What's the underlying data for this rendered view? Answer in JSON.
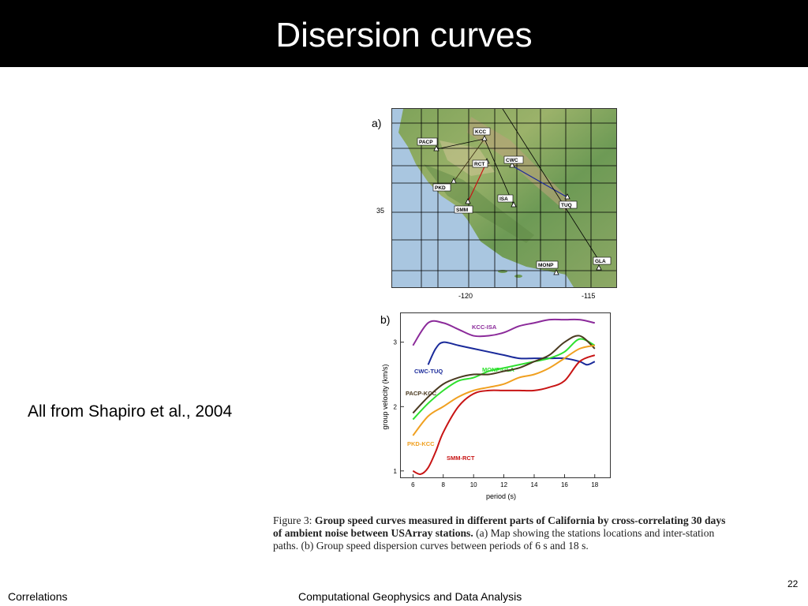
{
  "slide": {
    "title": "Disersion curves",
    "side_text": "All from Shapiro et al., 2004",
    "page_number": "22",
    "footer_left": "Correlations",
    "footer_center": "Computational Geophysics and Data Analysis"
  },
  "figure": {
    "panel_a_label": "a)",
    "panel_b_label": "b)",
    "map": {
      "lat_tick": "35",
      "lon_ticks": [
        "-120",
        "-115"
      ],
      "stations": [
        "KCC",
        "PACP",
        "RCT",
        "CWC",
        "PKD",
        "ISA",
        "SMM",
        "TUQ",
        "MONP",
        "GLA"
      ]
    },
    "caption": {
      "label": "Figure 3:",
      "bold_text": "Group speed curves measured in different parts of California by cross-correlating 30 days of ambient noise between USArray stations.",
      "rest": "(a) Map showing the stations locations and inter-station paths. (b) Group speed dispersion curves between periods of 6 s and 18 s."
    }
  },
  "chart_data": {
    "type": "line",
    "xlabel": "period (s)",
    "ylabel": "group velocity (km/s)",
    "x_ticks": [
      6,
      8,
      10,
      12,
      14,
      16,
      18
    ],
    "y_ticks": [
      1,
      2,
      3
    ],
    "xlim": [
      5.2,
      19.0
    ],
    "ylim": [
      0.9,
      3.45
    ],
    "grid": false,
    "series": [
      {
        "name": "KCC-ISA",
        "color": "#8b2a9a",
        "x": [
          6,
          7,
          8,
          9,
          10,
          11,
          12,
          13,
          14,
          15,
          16,
          17,
          18
        ],
        "y": [
          2.95,
          3.3,
          3.3,
          3.2,
          3.1,
          3.1,
          3.15,
          3.25,
          3.3,
          3.35,
          3.35,
          3.35,
          3.3
        ]
      },
      {
        "name": "CWC-TUQ",
        "color": "#1a2a9a",
        "x": [
          7,
          7.5,
          8,
          9,
          10,
          11,
          12,
          13,
          14,
          15,
          16,
          17,
          17.5,
          18
        ],
        "y": [
          2.65,
          2.9,
          3.0,
          2.95,
          2.9,
          2.85,
          2.8,
          2.75,
          2.75,
          2.75,
          2.75,
          2.7,
          2.65,
          2.7
        ]
      },
      {
        "name": "MONP-GLA",
        "color": "#2ee02e",
        "x": [
          6,
          7,
          8,
          9,
          10,
          11,
          12,
          13,
          14,
          15,
          16,
          17,
          18
        ],
        "y": [
          1.8,
          2.05,
          2.25,
          2.4,
          2.45,
          2.55,
          2.6,
          2.65,
          2.7,
          2.75,
          2.85,
          3.05,
          2.95
        ]
      },
      {
        "name": "PACP-KCC",
        "color": "#4a3a20",
        "x": [
          6,
          7,
          8,
          9,
          10,
          11,
          12,
          13,
          14,
          15,
          16,
          17,
          18
        ],
        "y": [
          1.9,
          2.15,
          2.35,
          2.45,
          2.5,
          2.5,
          2.55,
          2.6,
          2.7,
          2.8,
          3.0,
          3.1,
          2.9
        ]
      },
      {
        "name": "PKD-KCC",
        "color": "#f0a020",
        "x": [
          6,
          7,
          8,
          9,
          10,
          11,
          12,
          13,
          14,
          15,
          16,
          17,
          18
        ],
        "y": [
          1.55,
          1.85,
          2.0,
          2.15,
          2.25,
          2.3,
          2.35,
          2.45,
          2.5,
          2.6,
          2.75,
          2.9,
          2.95
        ]
      },
      {
        "name": "SMM-RCT",
        "color": "#c81414",
        "x": [
          6,
          6.5,
          7,
          7.5,
          8,
          9,
          10,
          11,
          12,
          13,
          14,
          15,
          16,
          17,
          18
        ],
        "y": [
          1.0,
          0.95,
          1.05,
          1.3,
          1.6,
          2.0,
          2.2,
          2.25,
          2.25,
          2.25,
          2.25,
          2.3,
          2.4,
          2.7,
          2.8
        ]
      }
    ]
  }
}
